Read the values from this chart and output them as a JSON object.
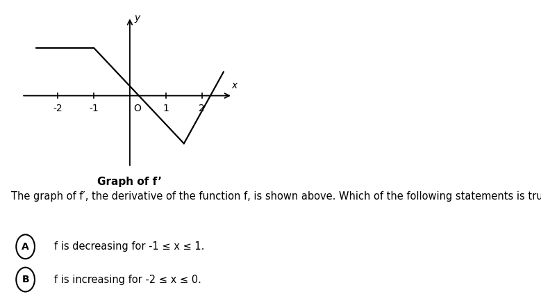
{
  "graph_segments": [
    {
      "x": [
        -2.6,
        -1.0
      ],
      "y": [
        2.0,
        2.0
      ]
    },
    {
      "x": [
        -1.0,
        1.5
      ],
      "y": [
        2.0,
        -2.0
      ]
    },
    {
      "x": [
        1.5,
        2.6
      ],
      "y": [
        -2.0,
        1.0
      ]
    }
  ],
  "line_color": "#000000",
  "line_width": 1.6,
  "axis_color": "#000000",
  "xlim": [
    -3.0,
    3.0
  ],
  "ylim": [
    -3.0,
    3.5
  ],
  "xticks": [
    -2,
    -1,
    1,
    2
  ],
  "xlabel": "x",
  "ylabel": "y",
  "graph_label": "Graph of f’",
  "background_color": "#ffffff",
  "title_text": "The graph of f′, the derivative of the function f, is shown above. Which of the following statements is true about f?",
  "option_A_circle": "A",
  "option_A_text": "f is decreasing for -1 ≤ x ≤ 1.",
  "option_B_circle": "B",
  "option_B_text": "f is increasing for -2 ≤ x ≤ 0.",
  "tick_fontsize": 10,
  "title_fontsize": 10.5,
  "option_fontsize": 10.5,
  "graph_label_fontsize": 11
}
